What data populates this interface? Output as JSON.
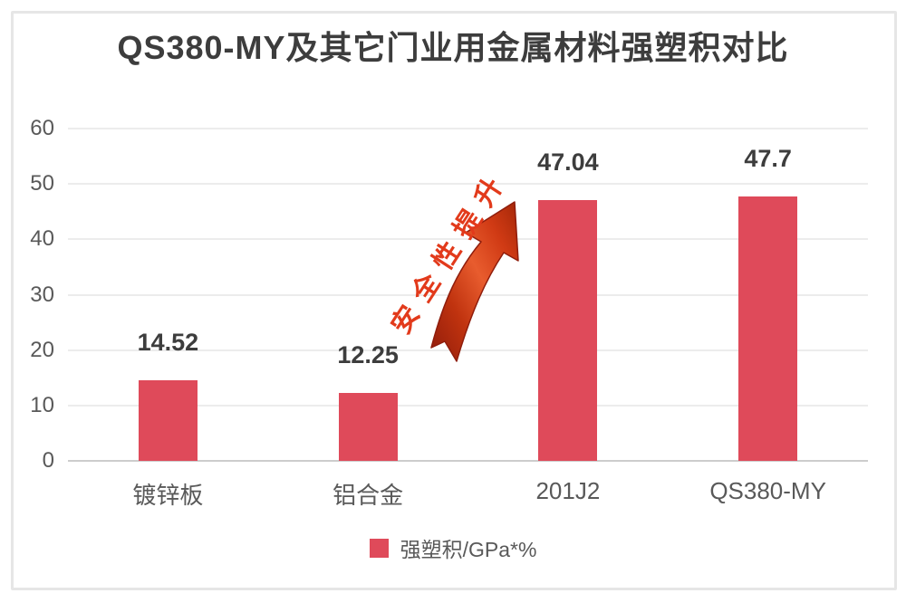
{
  "chart_data": {
    "type": "bar",
    "title": "QS380-MY及其它门业用金属材料强塑积对比",
    "categories": [
      "镀锌板",
      "铝合金",
      "201J2",
      "QS380-MY"
    ],
    "values": [
      14.52,
      12.25,
      47.04,
      47.7
    ],
    "value_labels": [
      "14.52",
      "12.25",
      "47.04",
      "47.7"
    ],
    "xlabel": "",
    "ylabel": "",
    "ylim": [
      0,
      60
    ],
    "yticks": [
      0,
      10,
      20,
      30,
      40,
      50,
      60
    ],
    "grid": true,
    "bar_color": "#df4a5a",
    "legend": {
      "position": "bottom",
      "label": "强塑积/GPa*%",
      "swatch_color": "#df4a5a"
    },
    "annotation": {
      "text": "安全性提升",
      "color": "#e23a1b",
      "rotation_deg": -57,
      "shape": "curved-up-arrow"
    }
  },
  "colors": {
    "title_text": "#3d3d3d",
    "axis_text": "#595959",
    "gridline": "#ececec",
    "baseline": "#cdcdcd",
    "frame_border": "#e6e6e6",
    "arrow_dark": "#8f1b0b",
    "arrow_bright": "#e85c2e"
  }
}
